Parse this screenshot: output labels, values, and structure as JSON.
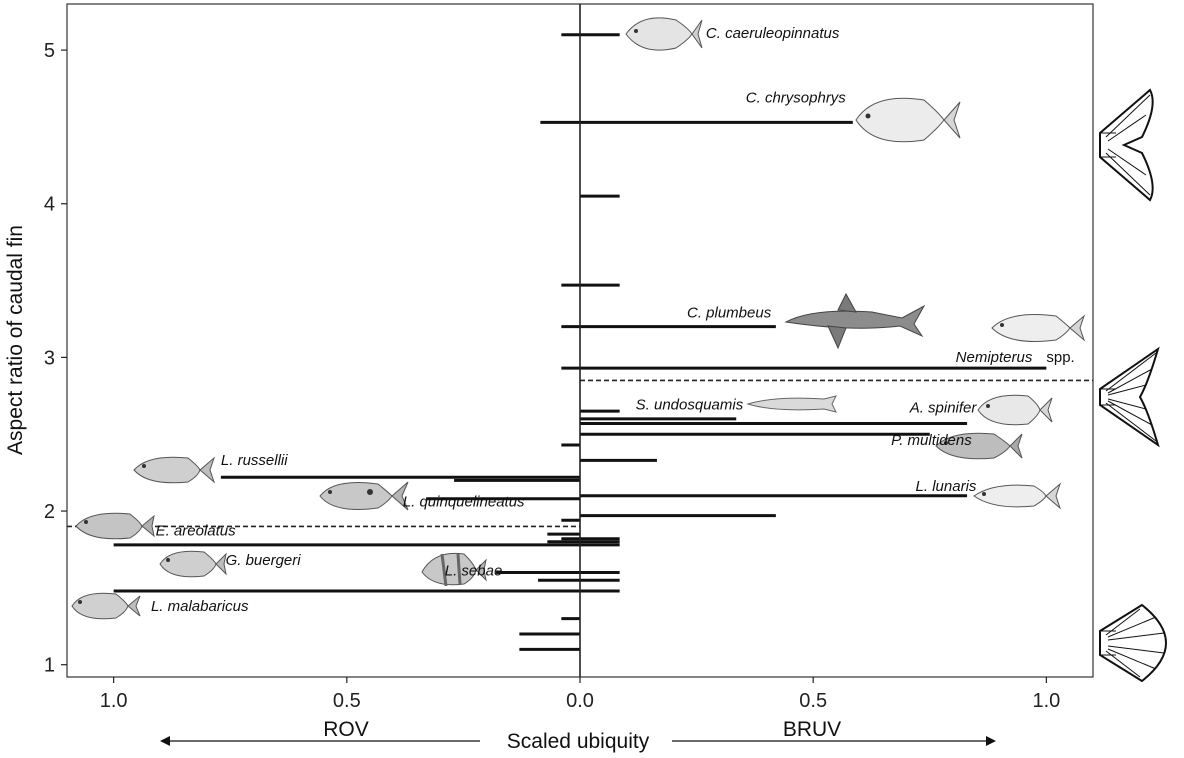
{
  "chart_data": {
    "type": "bar",
    "ylabel": "Aspect ratio of caudal fin",
    "xlabel": "Scaled ubiquity",
    "left_method": "ROV",
    "right_method": "BRUV",
    "xlim": [
      -1.1,
      1.1
    ],
    "ylim": [
      0.92,
      5.3
    ],
    "x_ticks": [
      -1.0,
      -0.5,
      0.0,
      0.5,
      1.0
    ],
    "x_tick_labels": [
      "1.0",
      "0.5",
      "0.0",
      "0.5",
      "1.0"
    ],
    "y_ticks": [
      1,
      2,
      3,
      4,
      5
    ],
    "y_tick_labels": [
      "1",
      "2",
      "3",
      "4",
      "5"
    ],
    "grid": false,
    "series": [
      {
        "values": [
          {
            "aspect": 5.1,
            "rov": 0.04,
            "bruv": 0.085
          },
          {
            "aspect": 4.53,
            "rov": 0.085,
            "bruv": 0.585
          },
          {
            "aspect": 4.05,
            "rov": 0.0,
            "bruv": 0.085
          },
          {
            "aspect": 3.47,
            "rov": 0.04,
            "bruv": 0.085
          },
          {
            "aspect": 3.2,
            "rov": 0.04,
            "bruv": 0.42
          },
          {
            "aspect": 2.93,
            "rov": 0.04,
            "bruv": 1.0
          },
          {
            "aspect": 2.65,
            "rov": 0.0,
            "bruv": 0.085
          },
          {
            "aspect": 2.6,
            "rov": 0.0,
            "bruv": 0.335
          },
          {
            "aspect": 2.57,
            "rov": 0.0,
            "bruv": 0.83
          },
          {
            "aspect": 2.5,
            "rov": 0.0,
            "bruv": 0.75
          },
          {
            "aspect": 2.43,
            "rov": 0.04,
            "bruv": 0.0
          },
          {
            "aspect": 2.33,
            "rov": 0.0,
            "bruv": 0.165
          },
          {
            "aspect": 2.22,
            "rov": 0.77,
            "bruv": 0.0
          },
          {
            "aspect": 2.2,
            "rov": 0.27,
            "bruv": 0.0
          },
          {
            "aspect": 2.1,
            "rov": 0.0,
            "bruv": 0.83
          },
          {
            "aspect": 2.08,
            "rov": 0.33,
            "bruv": 0.0
          },
          {
            "aspect": 1.97,
            "rov": 0.0,
            "bruv": 0.42
          },
          {
            "aspect": 1.94,
            "rov": 0.04,
            "bruv": 0.0
          },
          {
            "aspect": 1.85,
            "rov": 0.07,
            "bruv": 0.0
          },
          {
            "aspect": 1.82,
            "rov": 0.04,
            "bruv": 0.085
          },
          {
            "aspect": 1.8,
            "rov": 0.07,
            "bruv": 0.085
          },
          {
            "aspect": 1.78,
            "rov": 1.0,
            "bruv": 0.085
          },
          {
            "aspect": 1.6,
            "rov": 0.18,
            "bruv": 0.085
          },
          {
            "aspect": 1.55,
            "rov": 0.09,
            "bruv": 0.085
          },
          {
            "aspect": 1.48,
            "rov": 1.0,
            "bruv": 0.085
          },
          {
            "aspect": 1.3,
            "rov": 0.04,
            "bruv": 0.0
          },
          {
            "aspect": 1.2,
            "rov": 0.13,
            "bruv": 0.0
          },
          {
            "aspect": 1.1,
            "rov": 0.13,
            "bruv": 0.0
          }
        ]
      }
    ],
    "reference_lines": [
      {
        "side": "BRUV",
        "aspect": 2.85,
        "style": "dashed"
      },
      {
        "side": "ROV",
        "aspect": 1.9,
        "style": "dashed"
      }
    ],
    "annotations": [
      {
        "text": "C. caeruleopinnatus",
        "italic": true,
        "x": 0.27,
        "y": 5.08
      },
      {
        "text": "C. chrysophrys",
        "italic": true,
        "x": 0.57,
        "y": 4.66
      },
      {
        "text": "C. plumbeus",
        "italic": true,
        "x": 0.41,
        "y": 3.26
      },
      {
        "text": "Nemipterus",
        "italic": true,
        "x": 0.97,
        "y": 2.97
      },
      {
        "text": "spp.",
        "italic": false,
        "x": 1.0,
        "y": 2.97
      },
      {
        "text": "S. undosquamis",
        "italic": true,
        "x": 0.35,
        "y": 2.66
      },
      {
        "text": "A. spinifer",
        "italic": true,
        "x": 0.85,
        "y": 2.64
      },
      {
        "text": "P. multidens",
        "italic": true,
        "x": 0.84,
        "y": 2.43
      },
      {
        "text": "L. lunaris",
        "italic": true,
        "x": 0.85,
        "y": 2.13
      },
      {
        "text": "L. russellii",
        "italic": true,
        "x": -0.77,
        "y": 2.3
      },
      {
        "text": "L. quinquelineatus",
        "italic": true,
        "x": -0.38,
        "y": 2.03
      },
      {
        "text": "E. areolatus",
        "italic": true,
        "x": -0.91,
        "y": 1.84
      },
      {
        "text": "G. buergeri",
        "italic": true,
        "x": -0.76,
        "y": 1.65
      },
      {
        "text": "L. sebae",
        "italic": true,
        "x": -0.29,
        "y": 1.58
      },
      {
        "text": "L. malabaricus",
        "italic": true,
        "x": -0.92,
        "y": 1.35
      }
    ]
  },
  "colors": {
    "bar": "#111111",
    "axis": "#222222",
    "fish_fill": "#d9d9d9",
    "shark_fill": "#8c8c8c"
  },
  "illustrations": [
    "trevally-illustration",
    "golden-trevally-illustration",
    "sandbar-shark-illustration",
    "threadfin-bream-illustration",
    "lizardfish-illustration",
    "bream-illustration",
    "emperor-illustration",
    "scad-illustration",
    "snapper-illustration",
    "snapper-striped-illustration",
    "grouper-illustration",
    "sweetlips-illustration",
    "red-emperor-illustration",
    "red-snapper-illustration",
    "lunate-tail-icon",
    "forked-tail-icon",
    "rounded-tail-icon"
  ]
}
